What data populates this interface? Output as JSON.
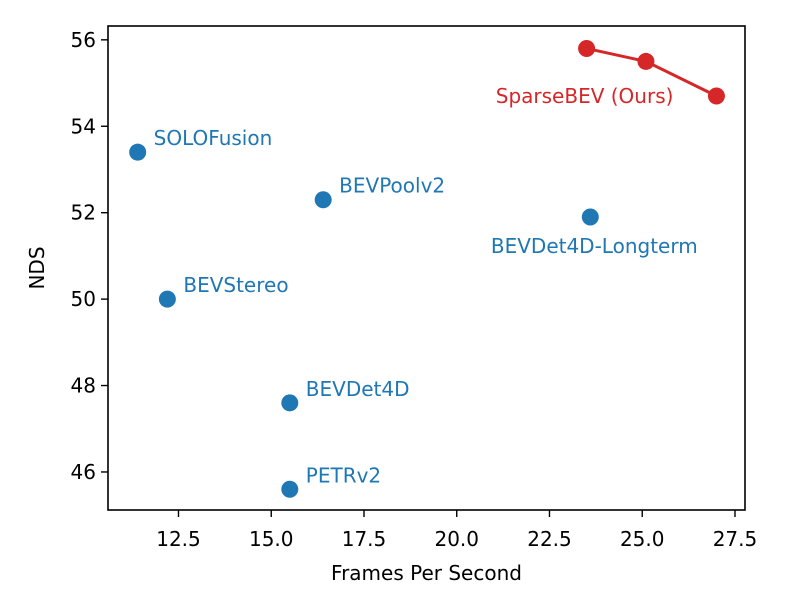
{
  "chart_data": {
    "type": "scatter",
    "title": "",
    "xlabel": "Frames Per Second",
    "ylabel": "NDS",
    "xlim": [
      10.6,
      27.77
    ],
    "ylim": [
      45.12,
      56.32
    ],
    "xticks": [
      12.5,
      15.0,
      17.5,
      20.0,
      22.5,
      25.0,
      27.5
    ],
    "xtick_labels": [
      "12.5",
      "15.0",
      "17.5",
      "20.0",
      "22.5",
      "25.0",
      "27.5"
    ],
    "yticks": [
      46,
      48,
      50,
      52,
      54,
      56
    ],
    "ytick_labels": [
      "46",
      "48",
      "50",
      "52",
      "54",
      "56"
    ],
    "grid": false,
    "colors": {
      "baseline": "#1f77b4",
      "ours": "#d62728"
    },
    "points": [
      {
        "label": "SOLOFusion",
        "x": 11.4,
        "y": 53.4
      },
      {
        "label": "BEVStereo",
        "x": 12.2,
        "y": 50.0
      },
      {
        "label": "BEVPoolv2",
        "x": 16.4,
        "y": 52.3
      },
      {
        "label": "BEVDet4D",
        "x": 15.5,
        "y": 47.6
      },
      {
        "label": "PETRv2",
        "x": 15.5,
        "y": 45.6
      },
      {
        "label": "BEVDet4D-Longterm",
        "x": 23.6,
        "y": 51.9
      }
    ],
    "series": [
      {
        "name": "SparseBEV (Ours)",
        "x": [
          23.5,
          25.1,
          27.0
        ],
        "y": [
          55.8,
          55.5,
          54.7
        ]
      }
    ]
  }
}
